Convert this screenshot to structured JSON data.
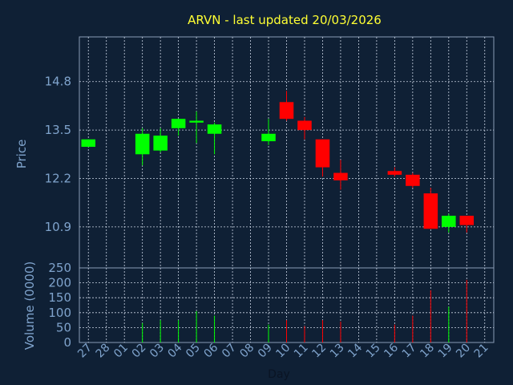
{
  "colors": {
    "background": "#0f2035",
    "plot_border": "#8a9bb5",
    "grid": "#c9d3e3",
    "title": "#ffff33",
    "label": "#7fa3cc",
    "up": "#00ff00",
    "down": "#ff0000"
  },
  "chart_data": {
    "type": "candlestick",
    "title": "ARVN - last updated 20/03/2026",
    "xlabel": "Day",
    "ylabel": "Price",
    "volume_label": "Volume (0000)",
    "x_ticks": [
      "27",
      "28",
      "01",
      "02",
      "03",
      "04",
      "05",
      "06",
      "07",
      "08",
      "09",
      "10",
      "11",
      "12",
      "13",
      "14",
      "15",
      "16",
      "17",
      "18",
      "19",
      "20",
      "21"
    ],
    "price_ticks": [
      "14.8",
      "13.5",
      "12.2",
      "10.9"
    ],
    "price_tick_values": [
      14.8,
      13.5,
      12.2,
      10.9
    ],
    "ylim_price": [
      9.8,
      16.0
    ],
    "volume_ticks": [
      "250",
      "200",
      "150",
      "100",
      "50",
      "0"
    ],
    "volume_tick_values": [
      250,
      200,
      150,
      100,
      50,
      0
    ],
    "ylim_volume": [
      0,
      250
    ],
    "grid": true,
    "candles": [
      {
        "day": "27",
        "open": 13.05,
        "high": 13.25,
        "low": 13.05,
        "close": 13.25
      },
      {
        "day": "02",
        "open": 12.85,
        "high": 13.55,
        "low": 12.55,
        "close": 13.4
      },
      {
        "day": "03",
        "open": 12.95,
        "high": 13.55,
        "low": 12.9,
        "close": 13.35
      },
      {
        "day": "04",
        "open": 13.55,
        "high": 13.8,
        "low": 13.35,
        "close": 13.8
      },
      {
        "day": "05",
        "open": 13.7,
        "high": 14.0,
        "low": 13.15,
        "close": 13.75
      },
      {
        "day": "06",
        "open": 13.4,
        "high": 13.7,
        "low": 12.85,
        "close": 13.65
      },
      {
        "day": "09",
        "open": 13.2,
        "high": 13.8,
        "low": 13.1,
        "close": 13.4
      },
      {
        "day": "10",
        "open": 14.25,
        "high": 14.55,
        "low": 13.75,
        "close": 13.8
      },
      {
        "day": "11",
        "open": 13.75,
        "high": 13.85,
        "low": 13.25,
        "close": 13.5
      },
      {
        "day": "12",
        "open": 13.25,
        "high": 13.25,
        "low": 12.25,
        "close": 12.5
      },
      {
        "day": "13",
        "open": 12.35,
        "high": 12.7,
        "low": 11.9,
        "close": 12.15
      },
      {
        "day": "16",
        "open": 12.4,
        "high": 12.5,
        "low": 12.25,
        "close": 12.3
      },
      {
        "day": "17",
        "open": 12.3,
        "high": 12.35,
        "low": 11.95,
        "close": 12.0
      },
      {
        "day": "18",
        "open": 11.8,
        "high": 11.95,
        "low": 10.85,
        "close": 10.85
      },
      {
        "day": "19",
        "open": 10.9,
        "high": 11.25,
        "low": 10.75,
        "close": 11.2
      },
      {
        "day": "20",
        "open": 11.2,
        "high": 11.2,
        "low": 10.75,
        "close": 10.95
      }
    ],
    "volume": [
      {
        "day": "02",
        "value": 65,
        "dir": "up"
      },
      {
        "day": "03",
        "value": 75,
        "dir": "up"
      },
      {
        "day": "04",
        "value": 75,
        "dir": "up"
      },
      {
        "day": "05",
        "value": 105,
        "dir": "up"
      },
      {
        "day": "06",
        "value": 90,
        "dir": "up"
      },
      {
        "day": "09",
        "value": 60,
        "dir": "up"
      },
      {
        "day": "10",
        "value": 75,
        "dir": "down"
      },
      {
        "day": "11",
        "value": 55,
        "dir": "down"
      },
      {
        "day": "12",
        "value": 75,
        "dir": "down"
      },
      {
        "day": "13",
        "value": 70,
        "dir": "down"
      },
      {
        "day": "16",
        "value": 60,
        "dir": "down"
      },
      {
        "day": "17",
        "value": 90,
        "dir": "down"
      },
      {
        "day": "18",
        "value": 175,
        "dir": "down"
      },
      {
        "day": "19",
        "value": 120,
        "dir": "up"
      },
      {
        "day": "20",
        "value": 210,
        "dir": "down"
      }
    ]
  }
}
